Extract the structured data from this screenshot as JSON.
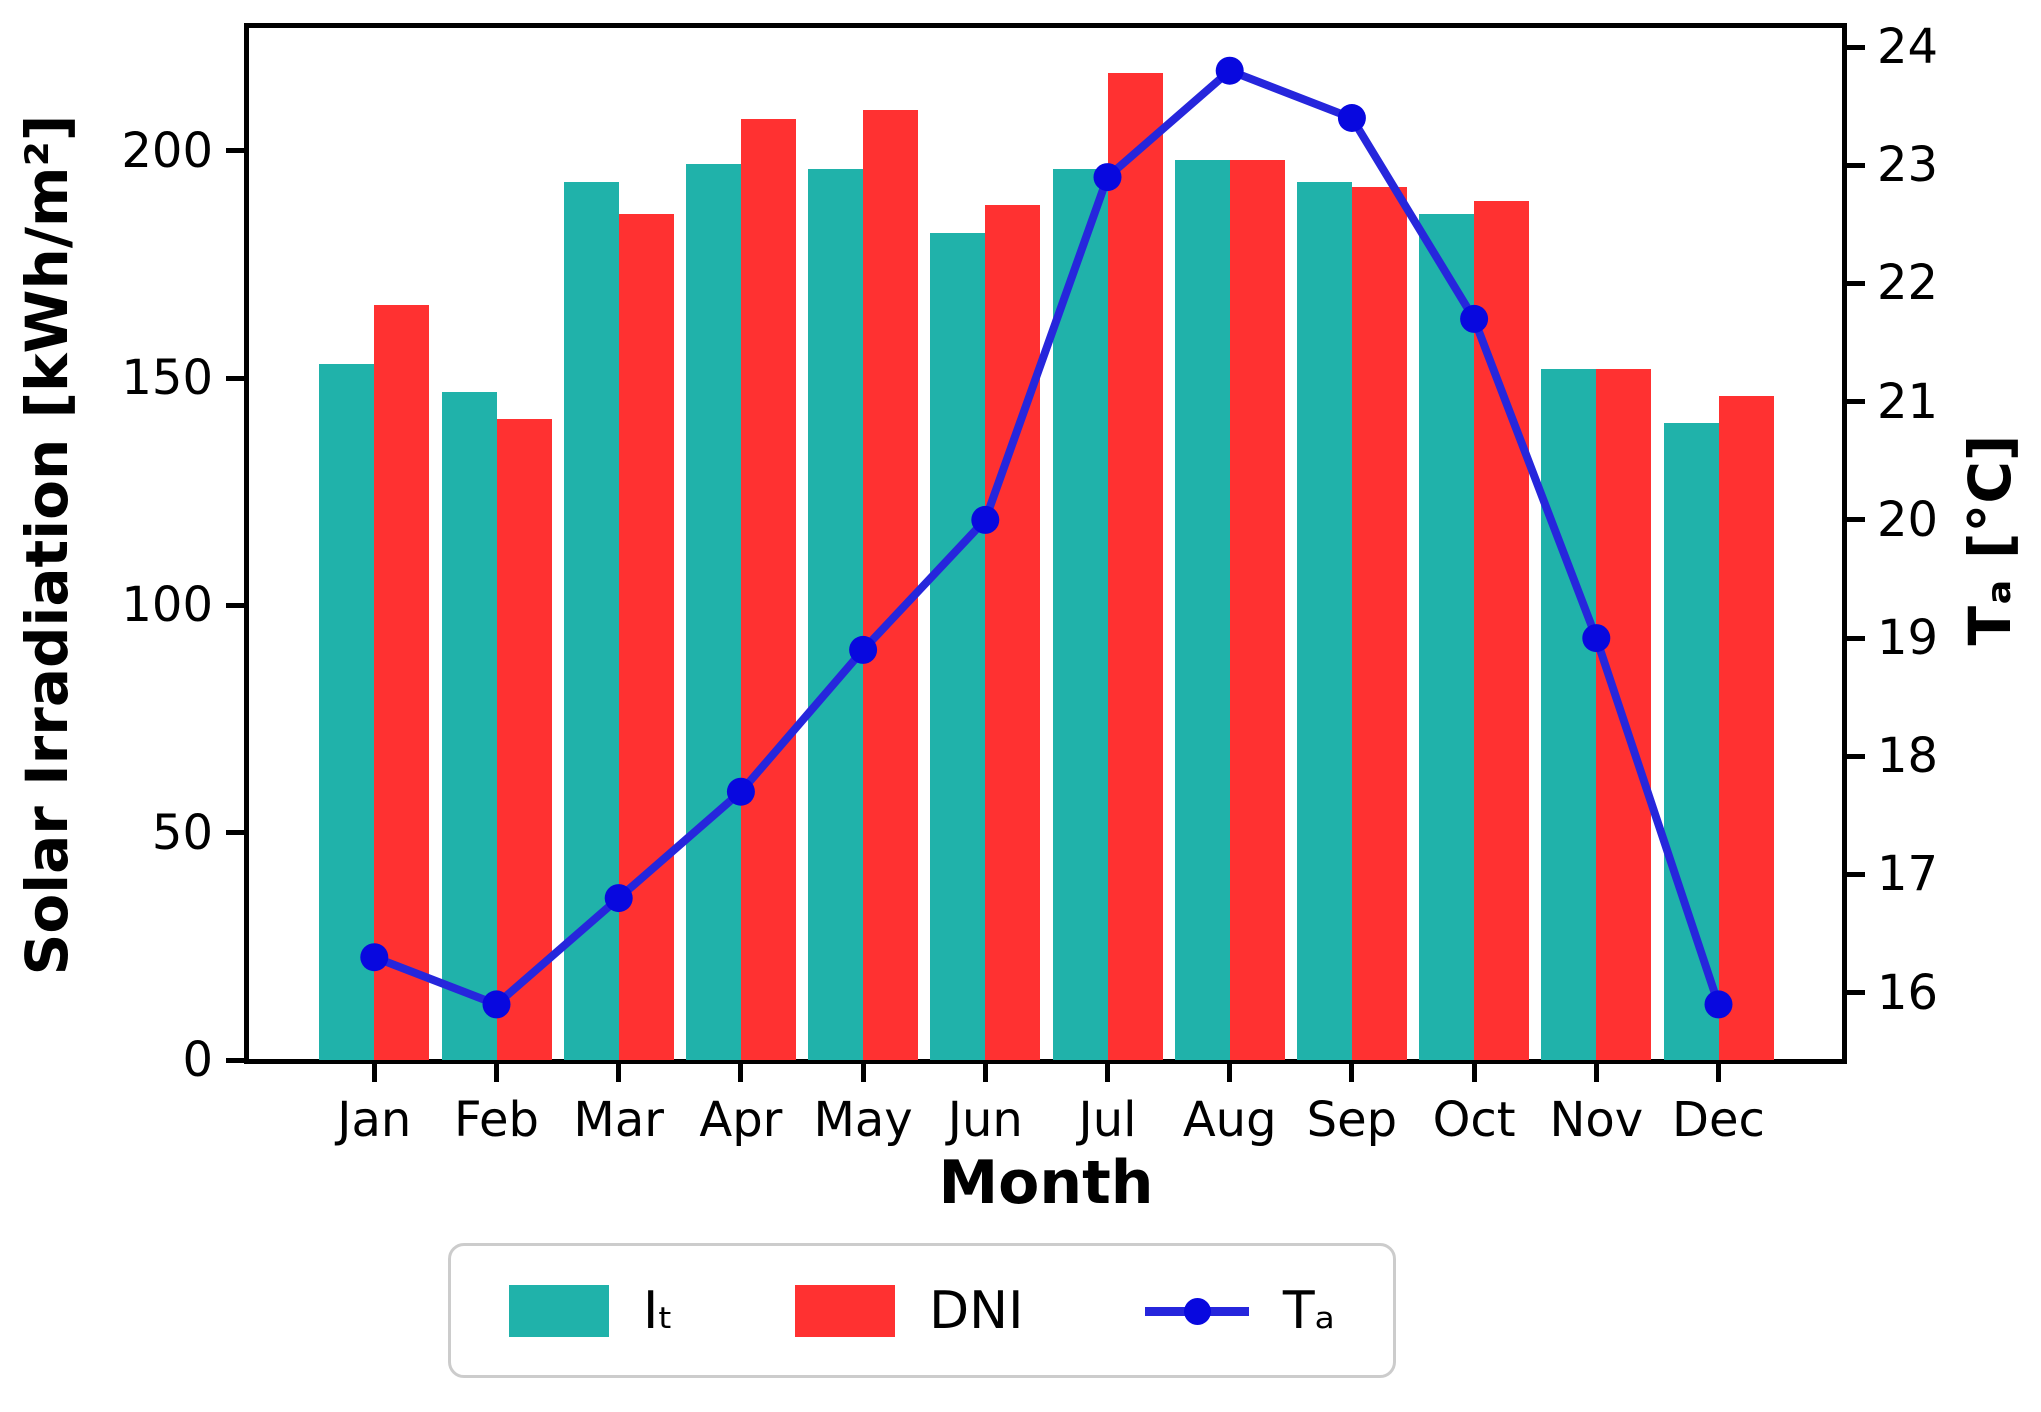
{
  "chart_data": {
    "type": "bar+line combo",
    "title": "",
    "categories": [
      "Jan",
      "Feb",
      "Mar",
      "Apr",
      "May",
      "Jun",
      "Jul",
      "Aug",
      "Sep",
      "Oct",
      "Nov",
      "Dec"
    ],
    "series": [
      {
        "name": "Iₜ",
        "type": "bar",
        "axis": "left",
        "color": "#20B2AA",
        "values": [
          153,
          147,
          193,
          197,
          196,
          182,
          196,
          198,
          193,
          186,
          152,
          140
        ]
      },
      {
        "name": "DNI",
        "type": "bar",
        "axis": "left",
        "color": "#FF3131",
        "values": [
          166,
          141,
          186,
          207,
          209,
          188,
          217,
          198,
          192,
          189,
          152,
          146
        ]
      },
      {
        "name": "Tₐ",
        "type": "line",
        "axis": "right",
        "color": "#2626DC",
        "marker_color": "#0808DF",
        "values": [
          16.3,
          15.9,
          16.8,
          17.7,
          18.9,
          20.0,
          22.9,
          23.8,
          23.4,
          21.7,
          19.0,
          15.9
        ]
      }
    ],
    "left_axis": {
      "label": "Solar Irradiation [kWh/m²]",
      "ticks": [
        0,
        50,
        100,
        150,
        200
      ],
      "range": [
        0,
        227.2
      ]
    },
    "right_axis": {
      "label": "Tₐ [°C]",
      "ticks": [
        16,
        17,
        18,
        19,
        20,
        21,
        22,
        23,
        24
      ],
      "range": [
        15.43,
        24.17
      ]
    },
    "xlabel": "Month",
    "legend": {
      "entries": [
        "Iₜ",
        "DNI",
        "Tₐ"
      ],
      "position": "bottom-center"
    },
    "grid": false
  }
}
